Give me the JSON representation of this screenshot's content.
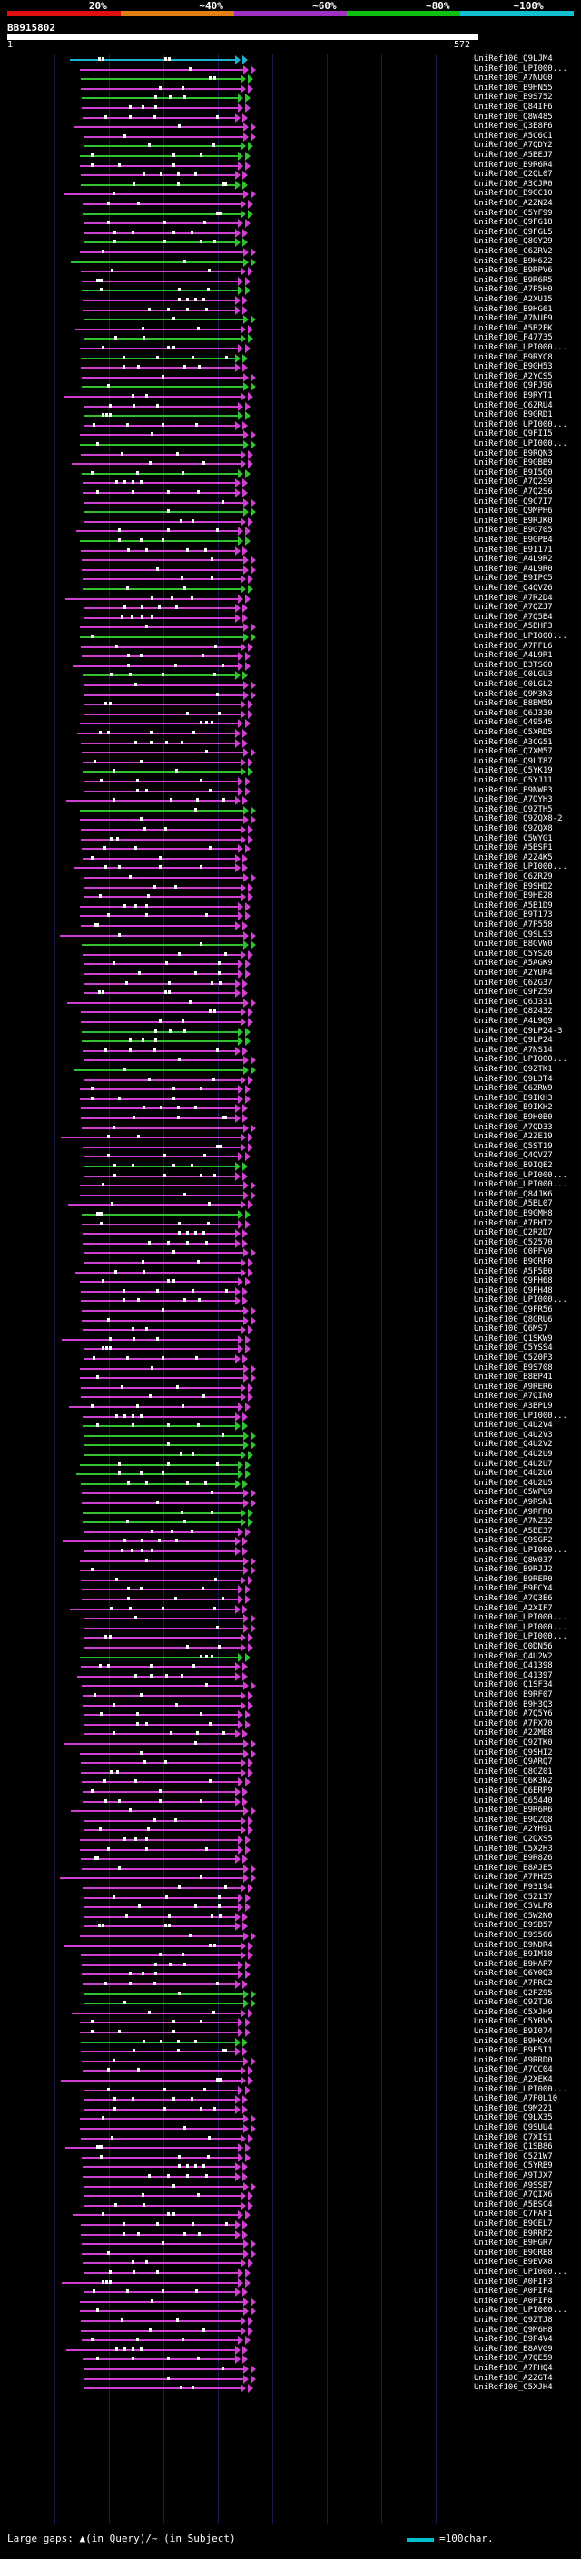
{
  "scale": {
    "labels": [
      "20%",
      "~40%",
      "~60%",
      "~80%",
      "~100%"
    ],
    "colors": [
      "#e01010",
      "#e08010",
      "#a030c0",
      "#10c010",
      "#10c0d0"
    ]
  },
  "query": {
    "id": "BB915802",
    "start": "1",
    "end": "572"
  },
  "legend": {
    "text": "Large gaps: ▲(in Query)/~ (in Subject)",
    "scale_text": "=100char."
  },
  "hit_colors": {
    "green": "#30c030",
    "magenta": "#d040d0",
    "cyan": "#20b0d0"
  },
  "hits": [
    {
      "label": "UniRef100_Q9LJM4",
      "color": "cyan"
    },
    {
      "label": "UniRef100_UPI000...",
      "color": "magenta"
    },
    {
      "label": "UniRef100_A7NUG0",
      "color": "green"
    },
    {
      "label": "UniRef100_B9HN55",
      "color": "magenta"
    },
    {
      "label": "UniRef100_B9S752",
      "color": "green"
    },
    {
      "label": "UniRef100_Q84IF6",
      "color": "magenta"
    },
    {
      "label": "UniRef100_Q8W485",
      "color": "magenta"
    },
    {
      "label": "UniRef100_Q3E8F6",
      "color": "magenta"
    },
    {
      "label": "UniRef100_A5C6C1",
      "color": "magenta"
    },
    {
      "label": "UniRef100_A7QDY2",
      "color": "green"
    },
    {
      "label": "UniRef100_A5BEJ7",
      "color": "green"
    },
    {
      "label": "UniRef100_B9R6R4",
      "color": "magenta"
    },
    {
      "label": "UniRef100_Q2QL07",
      "color": "magenta"
    },
    {
      "label": "UniRef100_A3CJR0",
      "color": "green"
    },
    {
      "label": "UniRef100_B9GC10",
      "color": "magenta"
    },
    {
      "label": "UniRef100_A2ZN24",
      "color": "magenta"
    },
    {
      "label": "UniRef100_C5YF99",
      "color": "green"
    },
    {
      "label": "UniRef100_Q9FG18",
      "color": "magenta"
    },
    {
      "label": "UniRef100_Q9FGL5",
      "color": "magenta"
    },
    {
      "label": "UniRef100_Q8GY29",
      "color": "green"
    },
    {
      "label": "UniRef100_C6ZRV2",
      "color": "magenta"
    },
    {
      "label": "UniRef100_B9H6Z2",
      "color": "green"
    },
    {
      "label": "UniRef100_B9RPV6",
      "color": "magenta"
    },
    {
      "label": "UniRef100_B9R6R5",
      "color": "magenta"
    },
    {
      "label": "UniRef100_A7P5H0",
      "color": "green"
    },
    {
      "label": "UniRef100_A2XU15",
      "color": "magenta"
    },
    {
      "label": "UniRef100_B9HG61",
      "color": "magenta"
    },
    {
      "label": "UniRef100_A7NUF9",
      "color": "green"
    },
    {
      "label": "UniRef100_A5B2FK",
      "color": "magenta"
    },
    {
      "label": "UniRef100_P47735",
      "color": "green"
    },
    {
      "label": "UniRef100_UPI000...",
      "color": "magenta"
    },
    {
      "label": "UniRef100_B9RYC8",
      "color": "green"
    },
    {
      "label": "UniRef100_B9GH53",
      "color": "magenta"
    },
    {
      "label": "UniRef100_A2YCS5",
      "color": "magenta"
    },
    {
      "label": "UniRef100_Q9FJ96",
      "color": "green"
    },
    {
      "label": "UniRef100_B9RYT1",
      "color": "magenta"
    },
    {
      "label": "UniRef100_C6ZRU4",
      "color": "magenta"
    },
    {
      "label": "UniRef100_B9GRD1",
      "color": "green"
    },
    {
      "label": "UniRef100_UPI000...",
      "color": "magenta"
    },
    {
      "label": "UniRef100_Q9FII5",
      "color": "magenta"
    },
    {
      "label": "UniRef100_UPI000...",
      "color": "green"
    },
    {
      "label": "UniRef100_B9RQN3",
      "color": "magenta"
    },
    {
      "label": "UniRef100_B9GBB9",
      "color": "magenta"
    },
    {
      "label": "UniRef100_B9I5Q0",
      "color": "green"
    },
    {
      "label": "UniRef100_A7Q2S9",
      "color": "magenta"
    },
    {
      "label": "UniRef100_A7Q2S6",
      "color": "magenta"
    },
    {
      "label": "UniRef100_Q9C7I7",
      "color": "magenta"
    },
    {
      "label": "UniRef100_Q9MPH6",
      "color": "green"
    },
    {
      "label": "UniRef100_B9RJK0",
      "color": "magenta"
    },
    {
      "label": "UniRef100_B9G705",
      "color": "magenta"
    },
    {
      "label": "UniRef100_B9GPB4",
      "color": "green"
    },
    {
      "label": "UniRef100_B9I171",
      "color": "magenta"
    },
    {
      "label": "UniRef100_A4L9R2",
      "color": "magenta"
    },
    {
      "label": "UniRef100_A4L9R0",
      "color": "magenta"
    },
    {
      "label": "UniRef100_B9IPC5",
      "color": "magenta"
    },
    {
      "label": "UniRef100_Q4QVZ6",
      "color": "green"
    },
    {
      "label": "UniRef100_A7R2D4",
      "color": "magenta"
    },
    {
      "label": "UniRef100_A7QZJ7",
      "color": "magenta"
    },
    {
      "label": "UniRef100_A7Q5B4",
      "color": "magenta"
    },
    {
      "label": "UniRef100_A5BHP3",
      "color": "magenta"
    },
    {
      "label": "UniRef100_UPI000...",
      "color": "green"
    },
    {
      "label": "UniRef100_A7PFL6",
      "color": "magenta"
    },
    {
      "label": "UniRef100_A4L9R1",
      "color": "magenta"
    },
    {
      "label": "UniRef100_B3TSG0",
      "color": "magenta"
    },
    {
      "label": "UniRef100_C0LGU3",
      "color": "green"
    },
    {
      "label": "UniRef100_C0LGL2",
      "color": "magenta"
    },
    {
      "label": "UniRef100_Q9M3N3",
      "color": "magenta"
    },
    {
      "label": "UniRef100_B8BM59",
      "color": "magenta"
    },
    {
      "label": "UniRef100_Q6J330",
      "color": "magenta"
    },
    {
      "label": "UniRef100_Q49545",
      "color": "magenta"
    },
    {
      "label": "UniRef100_C5XRD5",
      "color": "magenta"
    },
    {
      "label": "UniRef100_A3CG51",
      "color": "magenta"
    },
    {
      "label": "UniRef100_Q7XM57",
      "color": "magenta"
    },
    {
      "label": "UniRef100_Q9LT87",
      "color": "magenta"
    },
    {
      "label": "UniRef100_C5YK19",
      "color": "green"
    },
    {
      "label": "UniRef100_C5YJ11",
      "color": "magenta"
    },
    {
      "label": "UniRef100_B9NWP3",
      "color": "magenta"
    },
    {
      "label": "UniRef100_A7QYH3",
      "color": "magenta"
    },
    {
      "label": "UniRef100_Q9ZTH5",
      "color": "green"
    },
    {
      "label": "UniRef100_Q9ZQX8-2",
      "color": "magenta"
    },
    {
      "label": "UniRef100_Q9ZQX8",
      "color": "magenta"
    },
    {
      "label": "UniRef100_C5WYG1",
      "color": "magenta"
    },
    {
      "label": "UniRef100_A5BSP1",
      "color": "magenta"
    },
    {
      "label": "UniRef100_A2Z4K5",
      "color": "magenta"
    },
    {
      "label": "UniRef100_UPI000...",
      "color": "magenta"
    },
    {
      "label": "UniRef100_C6ZRZ9",
      "color": "magenta"
    },
    {
      "label": "UniRef100_B9SHD2",
      "color": "magenta"
    },
    {
      "label": "UniRef100_B9HE28",
      "color": "magenta"
    },
    {
      "label": "UniRef100_A5B1D9",
      "color": "magenta"
    },
    {
      "label": "UniRef100_B9T173",
      "color": "magenta"
    },
    {
      "label": "UniRef100_A7P558",
      "color": "magenta"
    },
    {
      "label": "UniRef100_Q9SLS3",
      "color": "magenta"
    },
    {
      "label": "UniRef100_B8GVW0",
      "color": "green"
    },
    {
      "label": "UniRef100_C5YSZ0",
      "color": "magenta"
    },
    {
      "label": "UniRef100_A5AGK9",
      "color": "magenta"
    },
    {
      "label": "UniRef100_A2YUP4",
      "color": "magenta"
    },
    {
      "label": "UniRef100_Q6ZG37",
      "color": "magenta"
    },
    {
      "label": "UniRef100_Q9FZ59",
      "color": "magenta"
    },
    {
      "label": "UniRef100_Q6J331",
      "color": "magenta"
    },
    {
      "label": "UniRef100_Q82432",
      "color": "magenta"
    },
    {
      "label": "UniRef100_A4L9Q9",
      "color": "magenta"
    },
    {
      "label": "UniRef100_Q9LP24-3",
      "color": "green"
    },
    {
      "label": "UniRef100_Q9LP24",
      "color": "green"
    },
    {
      "label": "UniRef100_A7NS14",
      "color": "magenta"
    },
    {
      "label": "UniRef100_UPI000...",
      "color": "magenta"
    },
    {
      "label": "UniRef100_Q9ZTK1",
      "color": "green"
    },
    {
      "label": "UniRef100_Q9L3T4",
      "color": "magenta"
    },
    {
      "label": "UniRef100_C6ZRW9",
      "color": "magenta"
    },
    {
      "label": "UniRef100_B9IKH3",
      "color": "magenta"
    },
    {
      "label": "UniRef100_B9IKH2",
      "color": "magenta"
    },
    {
      "label": "UniRef100_B9H0B0",
      "color": "magenta"
    },
    {
      "label": "UniRef100_A7QD33",
      "color": "magenta"
    },
    {
      "label": "UniRef100_A2ZE19",
      "color": "magenta"
    },
    {
      "label": "UniRef100_Q5ST19",
      "color": "magenta"
    },
    {
      "label": "UniRef100_Q4QVZ7",
      "color": "magenta"
    },
    {
      "label": "UniRef100_B9IQE2",
      "color": "green"
    },
    {
      "label": "UniRef100_UPI000...",
      "color": "magenta"
    },
    {
      "label": "UniRef100_UPI000...",
      "color": "magenta"
    },
    {
      "label": "UniRef100_Q84JK6",
      "color": "magenta"
    },
    {
      "label": "UniRef100_A5BL07",
      "color": "magenta"
    },
    {
      "label": "UniRef100_B9GMH8",
      "color": "green"
    },
    {
      "label": "UniRef100_A7PHT2",
      "color": "magenta"
    },
    {
      "label": "UniRef100_Q2R2D7",
      "color": "magenta"
    },
    {
      "label": "UniRef100_C5Z570",
      "color": "magenta"
    },
    {
      "label": "UniRef100_C0PFV9",
      "color": "magenta"
    },
    {
      "label": "UniRef100_B9GRF0",
      "color": "magenta"
    },
    {
      "label": "UniRef100_A5F5B0",
      "color": "magenta"
    },
    {
      "label": "UniRef100_Q9FH68",
      "color": "magenta"
    },
    {
      "label": "UniRef100_Q9FH48",
      "color": "magenta"
    },
    {
      "label": "UniRef100_UPI000...",
      "color": "magenta"
    },
    {
      "label": "UniRef100_Q9FR56",
      "color": "magenta"
    },
    {
      "label": "UniRef100_Q8GRU6",
      "color": "magenta"
    },
    {
      "label": "UniRef100_Q6MS7",
      "color": "magenta"
    },
    {
      "label": "UniRef100_Q1SKW9",
      "color": "magenta"
    },
    {
      "label": "UniRef100_C5YSS4",
      "color": "magenta"
    },
    {
      "label": "UniRef100_C5Z0P3",
      "color": "magenta"
    },
    {
      "label": "UniRef100_B9S708",
      "color": "magenta"
    },
    {
      "label": "UniRef100_B8BP41",
      "color": "magenta"
    },
    {
      "label": "UniRef100_A9RER6",
      "color": "magenta"
    },
    {
      "label": "UniRef100_A7QIN0",
      "color": "magenta"
    },
    {
      "label": "UniRef100_A3BPL9",
      "color": "magenta"
    },
    {
      "label": "UniRef100_UPI000...",
      "color": "magenta"
    },
    {
      "label": "UniRef100_Q4U2V4",
      "color": "green"
    },
    {
      "label": "UniRef100_Q4U2V3",
      "color": "green"
    },
    {
      "label": "UniRef100_Q4U2V2",
      "color": "green"
    },
    {
      "label": "UniRef100_Q4U2U9",
      "color": "green"
    },
    {
      "label": "UniRef100_Q4U2U7",
      "color": "green"
    },
    {
      "label": "UniRef100_Q4U2U6",
      "color": "green"
    },
    {
      "label": "UniRef100_Q4U2U5",
      "color": "green"
    },
    {
      "label": "UniRef100_C5WPU9",
      "color": "magenta"
    },
    {
      "label": "UniRef100_A9RSN1",
      "color": "magenta"
    },
    {
      "label": "UniRef100_A9RFR0",
      "color": "green"
    },
    {
      "label": "UniRef100_A7NZ32",
      "color": "green"
    },
    {
      "label": "UniRef100_A5BE37",
      "color": "magenta"
    },
    {
      "label": "UniRef100_Q9SGP2",
      "color": "magenta"
    },
    {
      "label": "UniRef100_UPI000...",
      "color": "magenta"
    },
    {
      "label": "UniRef100_Q8W037",
      "color": "magenta"
    },
    {
      "label": "UniRef100_B9RJJ2",
      "color": "magenta"
    },
    {
      "label": "UniRef100_B9RER0",
      "color": "magenta"
    },
    {
      "label": "UniRef100_B9ECY4",
      "color": "magenta"
    },
    {
      "label": "UniRef100_A7Q3E6",
      "color": "magenta"
    },
    {
      "label": "UniRef100_A2XIF7",
      "color": "magenta"
    },
    {
      "label": "UniRef100_UPI000...",
      "color": "magenta"
    },
    {
      "label": "UniRef100_UPI000...",
      "color": "magenta"
    },
    {
      "label": "UniRef100_UPI000...",
      "color": "magenta"
    },
    {
      "label": "UniRef100_Q0DN56",
      "color": "magenta"
    },
    {
      "label": "UniRef100_Q4U2W2",
      "color": "green"
    },
    {
      "label": "UniRef100_Q41398",
      "color": "magenta"
    },
    {
      "label": "UniRef100_Q41397",
      "color": "magenta"
    },
    {
      "label": "UniRef100_Q1SF34",
      "color": "magenta"
    },
    {
      "label": "UniRef100_B9RF07",
      "color": "magenta"
    },
    {
      "label": "UniRef100_B9H3Q3",
      "color": "magenta"
    },
    {
      "label": "UniRef100_A7Q5Y6",
      "color": "magenta"
    },
    {
      "label": "UniRef100_A7PX70",
      "color": "magenta"
    },
    {
      "label": "UniRef100_A2ZME8",
      "color": "magenta"
    },
    {
      "label": "UniRef100_Q9ZTK0",
      "color": "magenta"
    },
    {
      "label": "UniRef100_Q9SHI2",
      "color": "magenta"
    },
    {
      "label": "UniRef100_Q9ARQ7",
      "color": "magenta"
    },
    {
      "label": "UniRef100_Q8GZ01",
      "color": "magenta"
    },
    {
      "label": "UniRef100_Q6K3W2",
      "color": "magenta"
    },
    {
      "label": "UniRef100_Q6ERP9",
      "color": "magenta"
    },
    {
      "label": "UniRef100_Q65440",
      "color": "magenta"
    },
    {
      "label": "UniRef100_B9R6R6",
      "color": "magenta"
    },
    {
      "label": "UniRef100_B9QZQ8",
      "color": "magenta"
    },
    {
      "label": "UniRef100_A2YH91",
      "color": "magenta"
    },
    {
      "label": "UniRef100_Q2QXS5",
      "color": "magenta"
    },
    {
      "label": "UniRef100_C5X2H3",
      "color": "magenta"
    },
    {
      "label": "UniRef100_B9R8Z6",
      "color": "magenta"
    },
    {
      "label": "UniRef100_B8AJE5",
      "color": "magenta"
    },
    {
      "label": "UniRef100_A7PHZ5",
      "color": "magenta"
    },
    {
      "label": "UniRef100_P93194",
      "color": "magenta"
    },
    {
      "label": "UniRef100_C5Z137",
      "color": "magenta"
    },
    {
      "label": "UniRef100_C5VLP8",
      "color": "magenta"
    },
    {
      "label": "UniRef100_C5W2N0",
      "color": "magenta"
    },
    {
      "label": "UniRef100_B9SB57",
      "color": "magenta"
    },
    {
      "label": "UniRef100_B9S566",
      "color": "magenta"
    },
    {
      "label": "UniRef100_B9NDR4",
      "color": "magenta"
    },
    {
      "label": "UniRef100_B9IM18",
      "color": "magenta"
    },
    {
      "label": "UniRef100_B9HAP7",
      "color": "magenta"
    },
    {
      "label": "UniRef100_Q6Y0Q3",
      "color": "magenta"
    },
    {
      "label": "UniRef100_A7PRC2",
      "color": "magenta"
    },
    {
      "label": "UniRef100_Q2PZ95",
      "color": "green"
    },
    {
      "label": "UniRef100_Q9ZTJ6",
      "color": "green"
    },
    {
      "label": "UniRef100_C5XJH9",
      "color": "magenta"
    },
    {
      "label": "UniRef100_C5YRV5",
      "color": "magenta"
    },
    {
      "label": "UniRef100_B9I074",
      "color": "magenta"
    },
    {
      "label": "UniRef100_B9HKX4",
      "color": "green"
    },
    {
      "label": "UniRef100_B9F5I1",
      "color": "magenta"
    },
    {
      "label": "UniRef100_A9RRD0",
      "color": "magenta"
    },
    {
      "label": "UniRef100_A7QC04",
      "color": "magenta"
    },
    {
      "label": "UniRef100_A2XEK4",
      "color": "magenta"
    },
    {
      "label": "UniRef100_UPI000...",
      "color": "magenta"
    },
    {
      "label": "UniRef100_A7P0L10",
      "color": "magenta"
    },
    {
      "label": "UniRef100_Q9M2Z1",
      "color": "magenta"
    },
    {
      "label": "UniRef100_Q9LX35",
      "color": "magenta"
    },
    {
      "label": "UniRef100_Q9SUU4",
      "color": "magenta"
    },
    {
      "label": "UniRef100_Q7XIS1",
      "color": "magenta"
    },
    {
      "label": "UniRef100_Q1SB86",
      "color": "magenta"
    },
    {
      "label": "UniRef100_C5Z1W7",
      "color": "magenta"
    },
    {
      "label": "UniRef100_C5YRB9",
      "color": "magenta"
    },
    {
      "label": "UniRef100_A9TJX7",
      "color": "magenta"
    },
    {
      "label": "UniRef100_A9SSB7",
      "color": "magenta"
    },
    {
      "label": "UniRef100_A7QIX6",
      "color": "magenta"
    },
    {
      "label": "UniRef100_A5BSC4",
      "color": "magenta"
    },
    {
      "label": "UniRef100_Q7FAF1",
      "color": "magenta"
    },
    {
      "label": "UniRef100_B9GEL7",
      "color": "magenta"
    },
    {
      "label": "UniRef100_B9RRP2",
      "color": "magenta"
    },
    {
      "label": "UniRef100_B9HGR7",
      "color": "magenta"
    },
    {
      "label": "UniRef100_B9GRE8",
      "color": "magenta"
    },
    {
      "label": "UniRef100_B9EVX8",
      "color": "magenta"
    },
    {
      "label": "UniRef100_UPI000...",
      "color": "magenta"
    },
    {
      "label": "UniRef100_A0PIF3",
      "color": "magenta"
    },
    {
      "label": "UniRef100_A0PIF4",
      "color": "magenta"
    },
    {
      "label": "UniRef100_A0PIF8",
      "color": "magenta"
    },
    {
      "label": "UniRef100_UPI000...",
      "color": "magenta"
    },
    {
      "label": "UniRef100_Q9ZTJ8",
      "color": "magenta"
    },
    {
      "label": "UniRef100_Q9M6H8",
      "color": "magenta"
    },
    {
      "label": "UniRef100_B9P4V4",
      "color": "magenta"
    },
    {
      "label": "UniRef100_B8AVG9",
      "color": "magenta"
    },
    {
      "label": "UniRef100_A7QE59",
      "color": "magenta"
    },
    {
      "label": "UniRef100_A7PHQ4",
      "color": "magenta"
    },
    {
      "label": "UniRef100_A2ZGT4",
      "color": "magenta"
    },
    {
      "label": "UniRef100_C5XJH4",
      "color": "magenta"
    }
  ]
}
